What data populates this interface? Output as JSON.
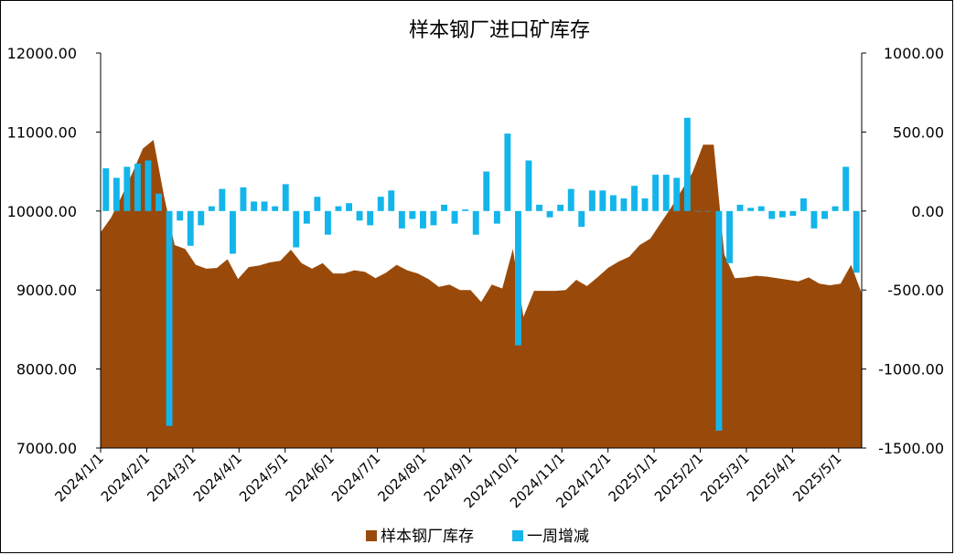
{
  "chart_data": {
    "type": "bar",
    "title": "样本钢厂进口矿库存",
    "xlabel": "",
    "ylabel": "",
    "left_axis": {
      "range": [
        7000,
        12000
      ],
      "ticks": [
        "7000.00",
        "8000.00",
        "9000.00",
        "10000.00",
        "11000.00",
        "12000.00"
      ]
    },
    "right_axis": {
      "range": [
        -1500,
        1000
      ],
      "ticks": [
        "-1500.00",
        "-1000.00",
        "-500.00",
        "0.00",
        "500.00",
        "1000.00"
      ]
    },
    "x_ticks": [
      "2024/1/1",
      "2024/2/1",
      "2024/3/1",
      "2024/4/1",
      "2024/5/1",
      "2024/6/1",
      "2024/7/1",
      "2024/8/1",
      "2024/9/1",
      "2024/10/1",
      "2024/11/1",
      "2024/12/1",
      "2025/1/1",
      "2025/2/1",
      "2025/3/1",
      "2025/4/1",
      "2025/5/1"
    ],
    "legend_position": "bottom",
    "grid": false,
    "series": [
      {
        "name": "样本钢厂库存",
        "type": "area",
        "axis": "left",
        "color": "#994A0A",
        "values": [
          9730,
          9920,
          10190,
          10480,
          10790,
          10900,
          10190,
          9570,
          9520,
          9320,
          9270,
          9280,
          9390,
          9140,
          9290,
          9310,
          9350,
          9370,
          9510,
          9340,
          9270,
          9340,
          9210,
          9210,
          9250,
          9230,
          9150,
          9220,
          9320,
          9250,
          9210,
          9140,
          9040,
          9070,
          9000,
          9000,
          8850,
          9070,
          9020,
          9520,
          8660,
          8990,
          8990,
          8990,
          9000,
          9130,
          9050,
          9160,
          9280,
          9360,
          9420,
          9570,
          9650,
          9850,
          10050,
          10270,
          10490,
          10840,
          10840,
          9450,
          9150,
          9160,
          9180,
          9170,
          9150,
          9130,
          9110,
          9160,
          9080,
          9060,
          9080,
          9320,
          8960
        ]
      },
      {
        "name": "一周增减",
        "type": "bar",
        "axis": "right",
        "color": "#13B5EA",
        "values": [
          270,
          210,
          280,
          300,
          320,
          110,
          -1360,
          -60,
          -220,
          -90,
          30,
          140,
          -270,
          150,
          60,
          60,
          30,
          170,
          -230,
          -80,
          90,
          -150,
          30,
          50,
          -60,
          -90,
          90,
          130,
          -110,
          -50,
          -110,
          -90,
          40,
          -80,
          10,
          -150,
          250,
          -80,
          490,
          -850,
          320,
          40,
          -40,
          40,
          140,
          -100,
          130,
          130,
          100,
          80,
          160,
          80,
          230,
          230,
          210,
          590,
          0,
          0,
          -1390,
          -330,
          40,
          20,
          30,
          -50,
          -40,
          -30,
          80,
          -110,
          -50,
          30,
          280,
          -390
        ]
      }
    ]
  }
}
